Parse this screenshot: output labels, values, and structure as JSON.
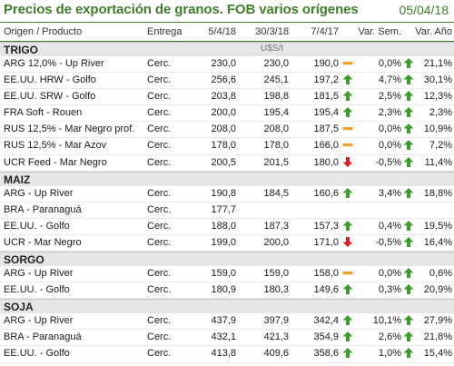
{
  "title": "Precios de exportación de granos. FOB varios orígenes",
  "date": "05/04/18",
  "columns": [
    "Origen / Producto",
    "Entrega",
    "5/4/18",
    "30/3/18",
    "7/4/17",
    "Var. Sem.",
    "Var. Año"
  ],
  "unit": "U$S/t",
  "colors": {
    "accent": "#3f7d2a",
    "up": "#3d9a2b",
    "down": "#d42020",
    "flat": "#f0a030"
  },
  "sections": [
    {
      "name": "TRIGO",
      "show_unit": true,
      "rows": [
        {
          "product": "ARG 12,0% - Up River",
          "delivery": "Cerc.",
          "p1": "230,0",
          "p2": "230,0",
          "p3": "190,0",
          "t4": "flat",
          "vs": "0,0%",
          "t5": "up",
          "va": "21,1%"
        },
        {
          "product": "EE.UU. HRW - Golfo",
          "delivery": "Cerc.",
          "p1": "256,6",
          "p2": "245,1",
          "p3": "197,2",
          "t4": "up",
          "vs": "4,7%",
          "t5": "up",
          "va": "30,1%"
        },
        {
          "product": "EE.UU. SRW - Golfo",
          "delivery": "Cerc.",
          "p1": "203,8",
          "p2": "198,8",
          "p3": "181,5",
          "t4": "up",
          "vs": "2,5%",
          "t5": "up",
          "va": "12,3%"
        },
        {
          "product": "FRA Soft - Rouen",
          "delivery": "Cerc.",
          "p1": "200,0",
          "p2": "195,4",
          "p3": "195,4",
          "t4": "up",
          "vs": "2,3%",
          "t5": "up",
          "va": "2,3%"
        },
        {
          "product": "RUS 12,5% - Mar Negro prof.",
          "delivery": "Cerc.",
          "p1": "208,0",
          "p2": "208,0",
          "p3": "187,5",
          "t4": "flat",
          "vs": "0,0%",
          "t5": "up",
          "va": "10,9%"
        },
        {
          "product": "RUS 12,5% - Mar Azov",
          "delivery": "Cerc.",
          "p1": "178,0",
          "p2": "178,0",
          "p3": "166,0",
          "t4": "flat",
          "vs": "0,0%",
          "t5": "up",
          "va": "7,2%"
        },
        {
          "product": "UCR Feed - Mar Negro",
          "delivery": "Cerc.",
          "p1": "200,5",
          "p2": "201,5",
          "p3": "180,0",
          "t4": "down",
          "vs": "-0,5%",
          "t5": "up",
          "va": "11,4%"
        }
      ]
    },
    {
      "name": "MAIZ",
      "show_unit": false,
      "rows": [
        {
          "product": "ARG - Up River",
          "delivery": "Cerc.",
          "p1": "190,8",
          "p2": "184,5",
          "p3": "160,6",
          "t4": "up",
          "vs": "3,4%",
          "t5": "up",
          "va": "18,8%"
        },
        {
          "product": "BRA - Paranaguá",
          "delivery": "Cerc.",
          "p1": "177,7",
          "p2": "",
          "p3": "",
          "t4": "",
          "vs": "",
          "t5": "",
          "va": ""
        },
        {
          "product": "EE.UU. - Golfo",
          "delivery": "Cerc.",
          "p1": "188,0",
          "p2": "187,3",
          "p3": "157,3",
          "t4": "up",
          "vs": "0,4%",
          "t5": "up",
          "va": "19,5%"
        },
        {
          "product": "UCR - Mar Negro",
          "delivery": "Cerc.",
          "p1": "199,0",
          "p2": "200,0",
          "p3": "171,0",
          "t4": "down",
          "vs": "-0,5%",
          "t5": "up",
          "va": "16,4%"
        }
      ]
    },
    {
      "name": "SORGO",
      "show_unit": false,
      "rows": [
        {
          "product": "ARG - Up River",
          "delivery": "Cerc.",
          "p1": "159,0",
          "p2": "159,0",
          "p3": "158,0",
          "t4": "flat",
          "vs": "0,0%",
          "t5": "up",
          "va": "0,6%"
        },
        {
          "product": "EE.UU. - Golfo",
          "delivery": "Cerc.",
          "p1": "180,9",
          "p2": "180,3",
          "p3": "149,6",
          "t4": "up",
          "vs": "0,3%",
          "t5": "up",
          "va": "20,9%"
        }
      ]
    },
    {
      "name": "SOJA",
      "show_unit": false,
      "rows": [
        {
          "product": "ARG - Up River",
          "delivery": "Cerc.",
          "p1": "437,9",
          "p2": "397,9",
          "p3": "342,4",
          "t4": "up",
          "vs": "10,1%",
          "t5": "up",
          "va": "27,9%"
        },
        {
          "product": "BRA - Paranaguá",
          "delivery": "Cerc.",
          "p1": "432,1",
          "p2": "421,3",
          "p3": "354,9",
          "t4": "up",
          "vs": "2,6%",
          "t5": "up",
          "va": "21,8%"
        },
        {
          "product": "EE.UU. - Golfo",
          "delivery": "Cerc.",
          "p1": "413,8",
          "p2": "409,6",
          "p3": "358,6",
          "t4": "up",
          "vs": "1,0%",
          "t5": "up",
          "va": "15,4%"
        }
      ]
    }
  ]
}
